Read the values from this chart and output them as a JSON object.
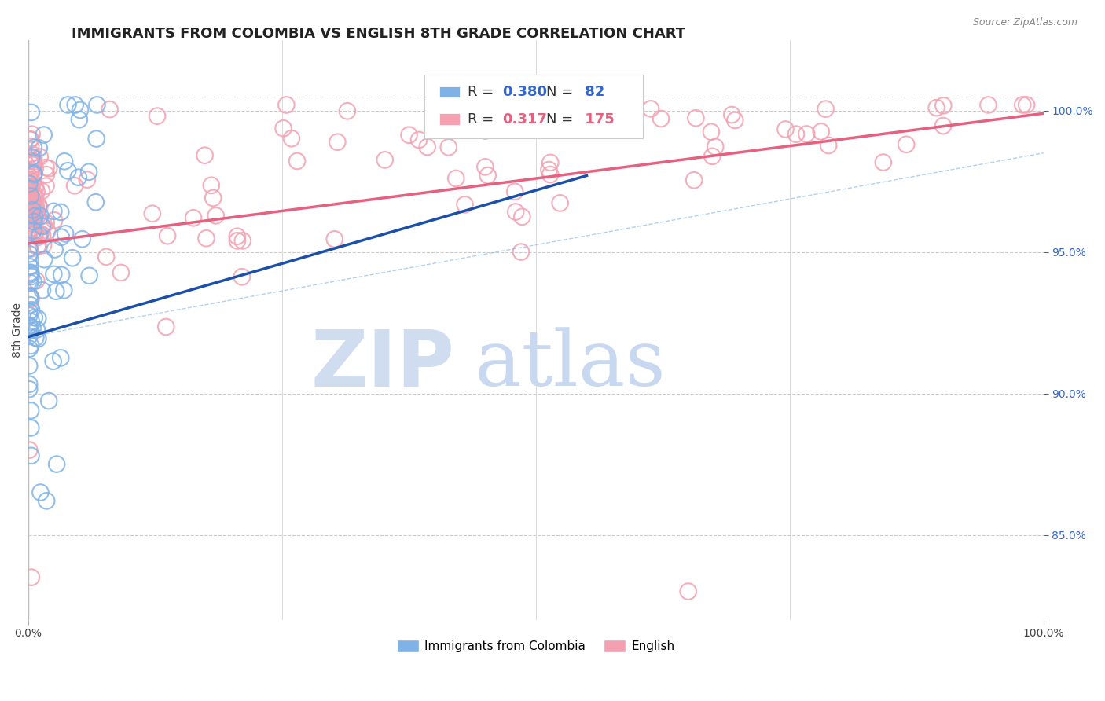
{
  "title": "IMMIGRANTS FROM COLOMBIA VS ENGLISH 8TH GRADE CORRELATION CHART",
  "source": "Source: ZipAtlas.com",
  "ylabel": "8th Grade",
  "legend_blue_label": "Immigrants from Colombia",
  "legend_pink_label": "English",
  "r_blue": 0.38,
  "n_blue": 82,
  "r_pink": 0.317,
  "n_pink": 175,
  "blue_color": "#7fb3e8",
  "pink_color": "#f4a0b0",
  "trend_blue_color": "#1a4faa",
  "trend_pink_color": "#e86080",
  "watermark_zip_color": "#d0ddf0",
  "watermark_atlas_color": "#c8d8f0",
  "background_color": "#ffffff",
  "grid_color": "#cccccc",
  "ytick_color": "#3366cc",
  "title_color": "#222222",
  "xlim": [
    0.0,
    1.0
  ],
  "ylim": [
    0.82,
    1.025
  ],
  "yticks": [
    0.85,
    0.9,
    0.95,
    1.0
  ],
  "ytick_labels": [
    "85.0%",
    "90.0%",
    "95.0%",
    "100.0%"
  ]
}
